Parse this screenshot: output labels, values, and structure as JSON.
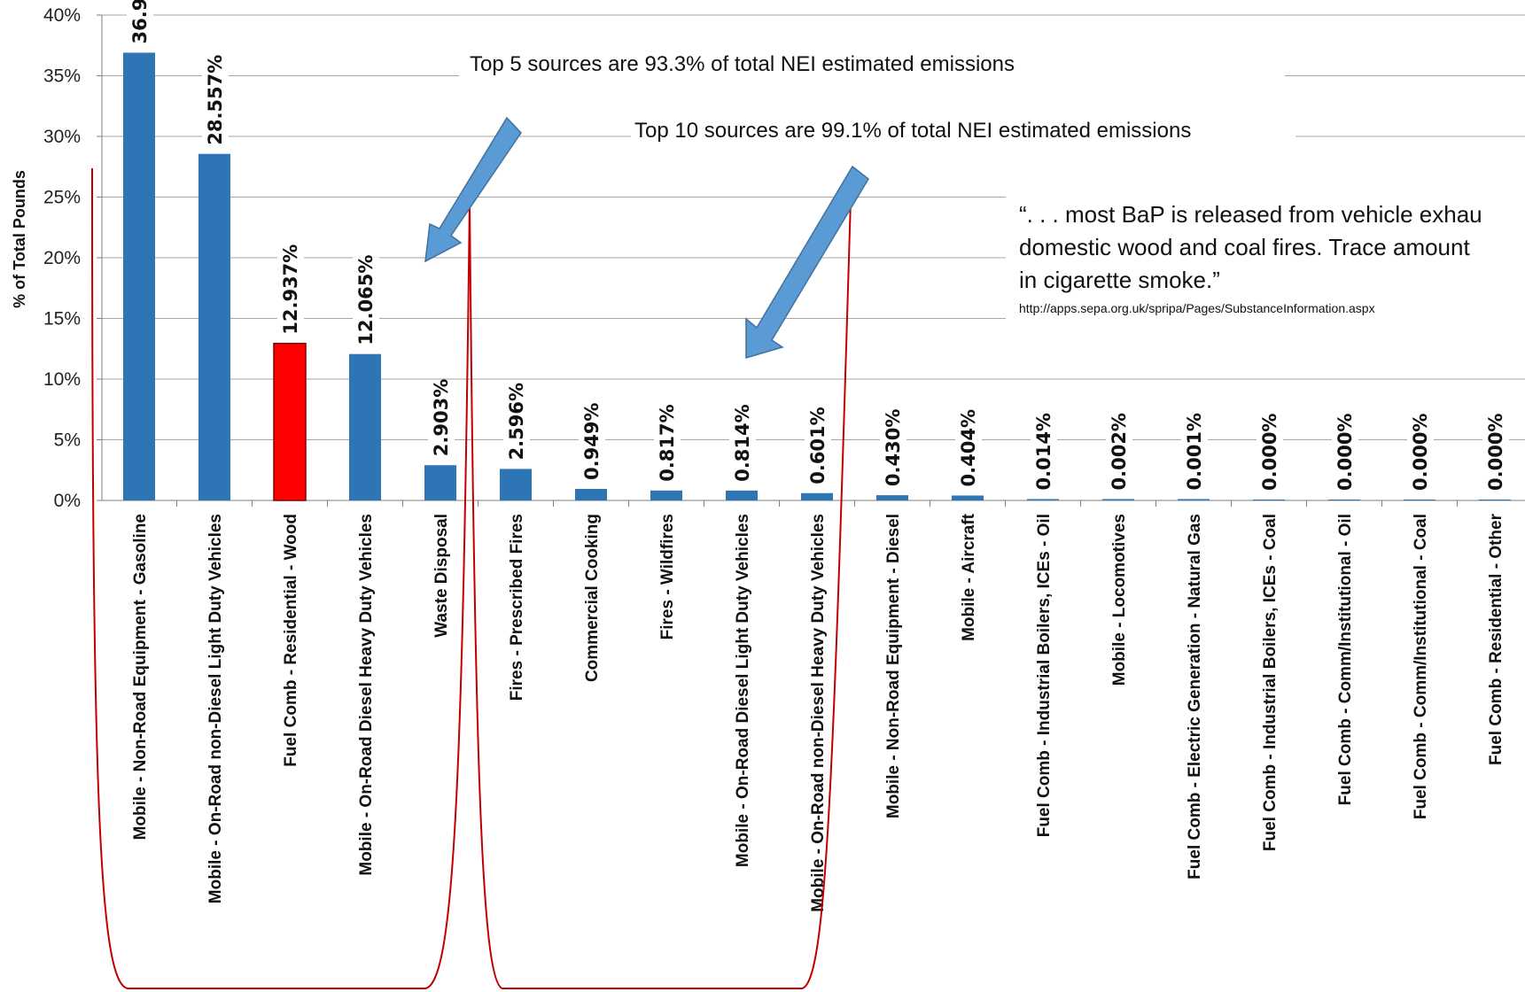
{
  "chart_data": {
    "type": "bar",
    "ylabel": "% of Total Pounds",
    "ylim": [
      0,
      40
    ],
    "yticks": [
      "0%",
      "5%",
      "10%",
      "15%",
      "20%",
      "25%",
      "30%",
      "35%",
      "40%"
    ],
    "grid": true,
    "categories": [
      "Mobile - Non-Road Equipment - Gasoline",
      "Mobile - On-Road non-Diesel Light Duty Vehicles",
      "Fuel Comb - Residential - Wood",
      "Mobile - On-Road Diesel Heavy Duty Vehicles",
      "Waste Disposal",
      "Fires - Prescribed Fires",
      "Commercial Cooking",
      "Fires - Wildfires",
      "Mobile - On-Road Diesel Light Duty Vehicles",
      "Mobile - On-Road non-Diesel Heavy Duty Vehicles",
      "Mobile - Non-Road Equipment - Diesel",
      "Mobile - Aircraft",
      "Fuel Comb - Industrial Boilers, ICEs - Oil",
      "Mobile - Locomotives",
      "Fuel Comb - Electric Generation - Natural Gas",
      "Fuel Comb - Industrial Boilers, ICEs - Coal",
      "Fuel Comb - Comm/Institutional - Oil",
      "Fuel Comb - Comm/Institutional - Coal",
      "Fuel Comb - Residential - Other"
    ],
    "values": [
      36.9,
      28.557,
      12.937,
      12.065,
      2.903,
      2.596,
      0.949,
      0.817,
      0.814,
      0.601,
      0.43,
      0.404,
      0.014,
      0.002,
      0.001,
      0.0,
      0.0,
      0.0,
      0.0
    ],
    "data_labels": [
      "36.9",
      "28.557%",
      "12.937%",
      "12.065%",
      "2.903%",
      "2.596%",
      "0.949%",
      "0.817%",
      "0.814%",
      "0.601%",
      "0.430%",
      "0.404%",
      "0.014%",
      "0.002%",
      "0.001%",
      "0.000%",
      "0.000%",
      "0.000%",
      "0.000%"
    ],
    "highlighted_index": 2,
    "colors": {
      "bar": "#2e75b6",
      "highlight": "#ff0000",
      "bracket": "#c00000",
      "arrow": "#5b9bd5",
      "grid": "#a6a6a6"
    },
    "annotations": {
      "top5": "Top 5 sources are 93.3% of total NEI estimated emissions",
      "top10": "Top 10 sources are 99.1% of total NEI estimated emissions",
      "quote_lines": [
        "“. . . most BaP is released from vehicle exhau",
        "domestic wood and coal fires. Trace amount",
        "in cigarette smoke.”"
      ],
      "url": "http://apps.sepa.org.uk/spripa/Pages/SubstanceInformation.aspx"
    }
  }
}
